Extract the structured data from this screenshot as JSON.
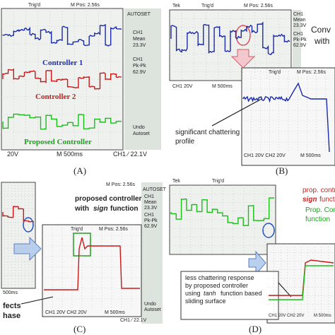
{
  "panels": [
    {
      "label": "(A)",
      "trig": "Trig'd",
      "pos": "M Pos: 2.56s",
      "side": [
        "AUTOSET",
        "CH1",
        "Mean",
        "23.3V",
        "CH1",
        "Pk-Pk",
        "62.9V",
        "Undo",
        "Autoset"
      ],
      "traces": [
        "Controller 1",
        "Controller 2",
        "Proposed Controller"
      ],
      "footer": [
        "20V",
        "M 500ms",
        "CH1 ∕ 22.1V"
      ]
    },
    {
      "label": "(B)",
      "tek": "Tek",
      "trig": "Trig'd",
      "pos": "M Pos: 2.56s",
      "side": [
        "CH1",
        "Mean",
        "23.3V",
        "CH1",
        "Pk-Pk",
        "62.9V"
      ],
      "note": [
        "Conv",
        "with"
      ],
      "footer": [
        "CH1  20V",
        "M 500ms"
      ],
      "inset": {
        "trig": "Trig'd",
        "pos": "M Pos: 2.56s",
        "footer": [
          "CH1  20V   CH2  20V",
          "M 500ms"
        ]
      },
      "callout": [
        "significant chattering",
        "profile"
      ]
    },
    {
      "label": "(C)",
      "pos": "M Pos: 2.56s",
      "side": [
        "AUTOSET",
        "CH1",
        "Mean",
        "23.3V",
        "CH1",
        "Pk-Pk",
        "62.9V",
        "Undo",
        "Autoset"
      ],
      "note": [
        "proposed controller",
        "with",
        "sign",
        "function"
      ],
      "footer": [
        "500ms",
        "CH1 ∕ 22.1V"
      ],
      "inset": {
        "trig": "Trig'd",
        "pos": "M Pos: 2.56s",
        "footer": [
          "CH1  20V   CH2  20V",
          "M 500ms"
        ]
      },
      "callout": [
        "fects",
        "hase"
      ]
    },
    {
      "label": "(D)",
      "tek": "Tek",
      "trig": "Trig'd",
      "note": [
        "prop. contr",
        "sign",
        "function",
        "Prop. Con",
        "function"
      ],
      "inset": {
        "footer": [
          "CH1  20V   CH2  20V",
          "M 500ms"
        ]
      },
      "callout": [
        "less chattering response",
        "by proposed controller",
        "using",
        "tanh",
        "function based",
        "sliding surface"
      ]
    }
  ]
}
